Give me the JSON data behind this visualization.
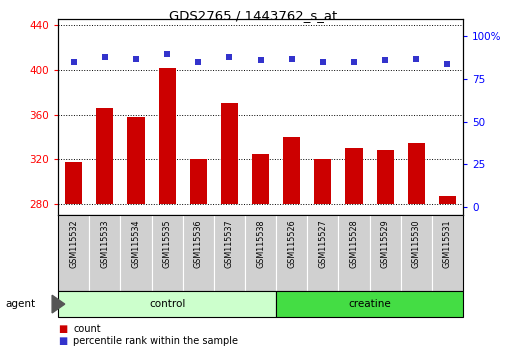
{
  "title": "GDS2765 / 1443762_s_at",
  "samples": [
    "GSM115532",
    "GSM115533",
    "GSM115534",
    "GSM115535",
    "GSM115536",
    "GSM115537",
    "GSM115538",
    "GSM115526",
    "GSM115527",
    "GSM115528",
    "GSM115529",
    "GSM115530",
    "GSM115531"
  ],
  "counts": [
    318,
    366,
    358,
    402,
    320,
    370,
    325,
    340,
    320,
    330,
    328,
    335,
    287
  ],
  "percentiles": [
    85,
    88,
    87,
    90,
    85,
    88,
    86,
    87,
    85,
    85,
    86,
    87,
    84
  ],
  "bar_color": "#cc0000",
  "dot_color": "#3333cc",
  "ylim_left": [
    270,
    445
  ],
  "ylim_right": [
    -5,
    110
  ],
  "yticks_left": [
    280,
    320,
    360,
    400,
    440
  ],
  "yticks_right": [
    0,
    25,
    50,
    75,
    100
  ],
  "group_labels": [
    "control",
    "creatine"
  ],
  "group_counts": [
    7,
    6
  ],
  "control_color": "#ccffcc",
  "creatine_color": "#44dd44",
  "agent_label": "agent",
  "legend_count_color": "#cc0000",
  "legend_pct_color": "#3333cc",
  "legend_count_label": "count",
  "legend_pct_label": "percentile rank within the sample",
  "baseline": 280,
  "tick_bg": "#d0d0d0"
}
